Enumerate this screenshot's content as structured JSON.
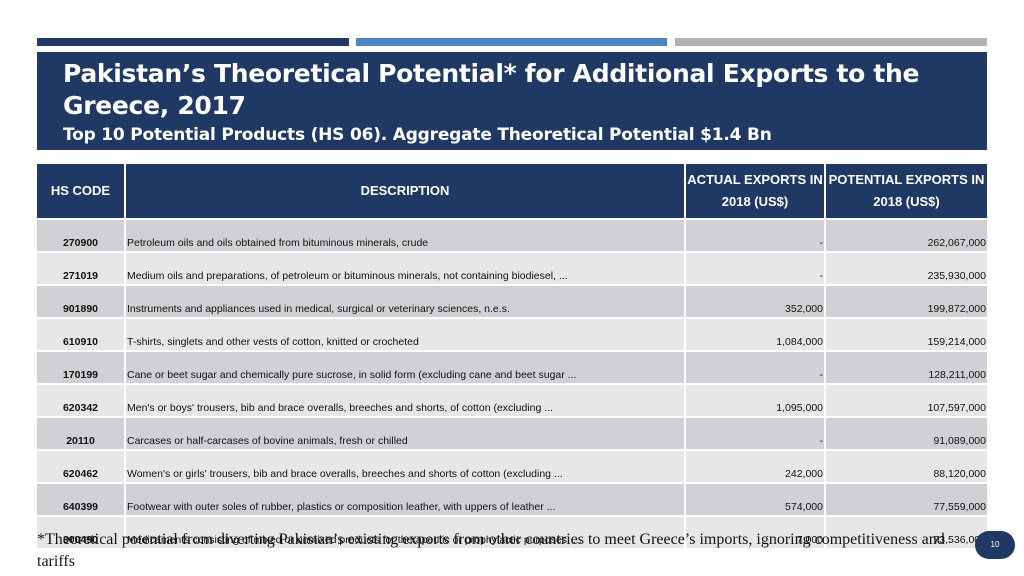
{
  "header": {
    "title": "Pakistan’s Theoretical Potential* for Additional Exports to the Greece, 2017",
    "subtitle": "Top 10 Potential Products (HS 06). Aggregate Theoretical Potential $1.4 Bn"
  },
  "table": {
    "columns": [
      "HS CODE",
      "DESCRIPTION",
      "ACTUAL EXPORTS IN 2018 (US$)",
      "POTENTIAL EXPORTS IN 2018 (US$)"
    ],
    "rows": [
      {
        "code": "270900",
        "description": "Petroleum oils and oils obtained from bituminous minerals, crude",
        "actual": "-",
        "potential": "262,067,000"
      },
      {
        "code": "271019",
        "description": "Medium oils and preparations, of petroleum or bituminous minerals, not containing biodiesel, ...",
        "actual": "-",
        "potential": "235,930,000"
      },
      {
        "code": "901890",
        "description": "Instruments and appliances used in medical, surgical or veterinary sciences, n.e.s.",
        "actual": "352,000",
        "potential": "199,872,000"
      },
      {
        "code": "610910",
        "description": "T-shirts, singlets and other vests of cotton, knitted or crocheted",
        "actual": "1,084,000",
        "potential": "159,214,000"
      },
      {
        "code": "170199",
        "description": "Cane or beet sugar and chemically pure sucrose, in solid form (excluding cane and beet sugar ...",
        "actual": "-",
        "potential": "128,211,000"
      },
      {
        "code": "620342",
        "description": "Men's or boys' trousers, bib and brace overalls, breeches and shorts, of cotton (excluding ...",
        "actual": "1,095,000",
        "potential": "107,597,000"
      },
      {
        "code": "20110",
        "description": "Carcases or half-carcases of bovine animals, fresh or chilled",
        "actual": "-",
        "potential": "91,089,000"
      },
      {
        "code": "620462",
        "description": "Women's or girls' trousers, bib and brace overalls, breeches and shorts of cotton (excluding ...",
        "actual": "242,000",
        "potential": "88,120,000"
      },
      {
        "code": "640399",
        "description": "Footwear with outer soles of rubber, plastics or composition leather, with uppers of leather ...",
        "actual": "574,000",
        "potential": "77,559,000"
      },
      {
        "code": "300490",
        "description": "Medicaments consisting of mixed or unmixed products for therapeutic or prophylactic purposes, ...",
        "actual": "7,000",
        "potential": "73,536,000"
      }
    ]
  },
  "footnote": "*Theoretical potential from diverting Pakistan’s existing exports from other countries to meet Greece’s imports, ignoring competitiveness and tariffs",
  "page_number": "10",
  "colors": {
    "navy": "#1f3864",
    "blue": "#4a86c0",
    "gray": "#b3b3b3"
  }
}
